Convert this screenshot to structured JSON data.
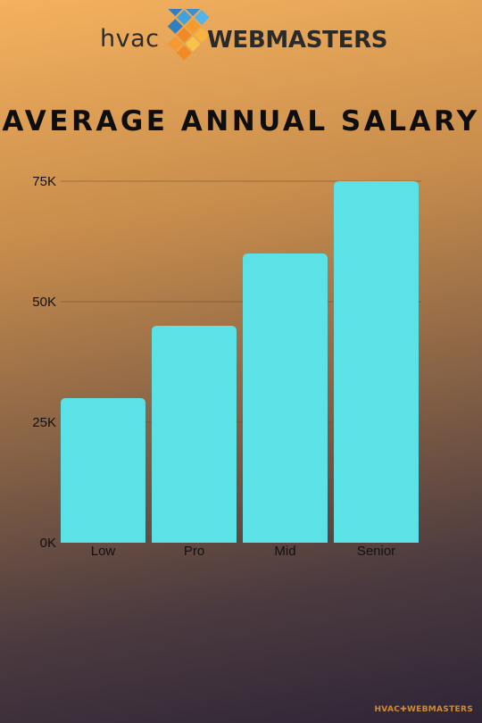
{
  "brand": {
    "logo_left": "hvac",
    "logo_right": "WEBMASTERS",
    "footer": "HVAC✚WEBMASTERS",
    "colors": {
      "blue": "#3fa3e0",
      "orange": "#f59a2c",
      "bar": "#5ae2e6"
    }
  },
  "chart_data": {
    "type": "bar",
    "title": "AVERAGE ANNUAL SALARY",
    "xlabel": "",
    "ylabel": "",
    "categories": [
      "Low",
      "Pro",
      "Mid",
      "Senior"
    ],
    "values": [
      30000,
      45000,
      60000,
      75000
    ],
    "ylim": [
      0,
      75000
    ],
    "yticks": [
      0,
      25000,
      50000,
      75000
    ],
    "ytick_labels": [
      "0K",
      "25K",
      "50K",
      "75K"
    ],
    "grid": true,
    "legend": "none"
  }
}
